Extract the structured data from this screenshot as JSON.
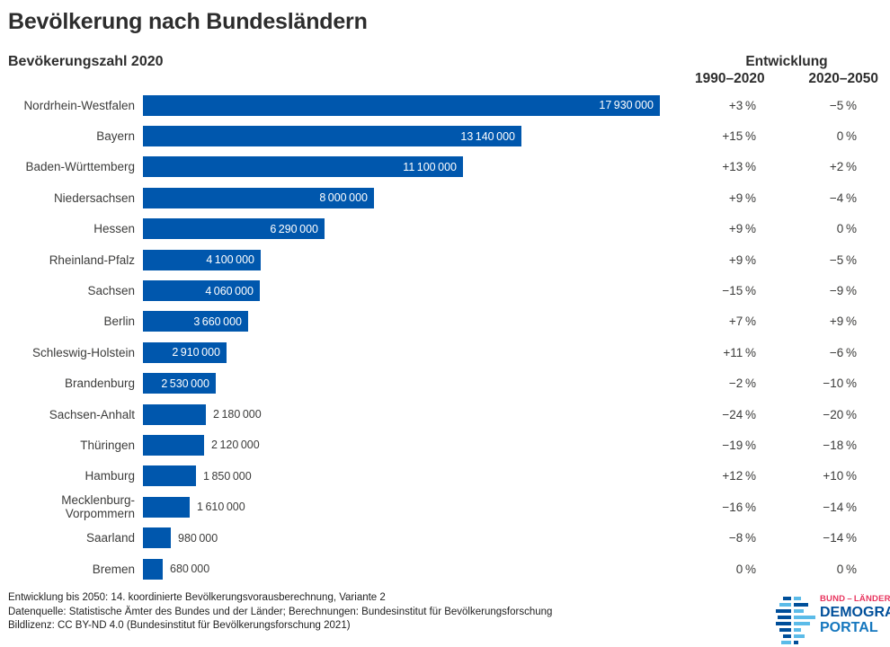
{
  "title": "Bevölkerung nach Bundesländern",
  "header": {
    "left_subtitle": "Bevökerungszahl 2020",
    "right_title": "Entwicklung",
    "col1_label": "1990–2020",
    "col2_label": "2020–2050"
  },
  "chart_data": {
    "type": "bar",
    "orientation": "horizontal",
    "title": "Bevölkerung nach Bundesländern",
    "subtitle": "Bevökerungszahl 2020",
    "categories": [
      "Nordrhein-Westfalen",
      "Bayern",
      "Baden-Württemberg",
      "Niedersachsen",
      "Hessen",
      "Rheinland-Pfalz",
      "Sachsen",
      "Berlin",
      "Schleswig-Holstein",
      "Brandenburg",
      "Sachsen-Anhalt",
      "Thüringen",
      "Hamburg",
      "Mecklenburg-Vorpommern",
      "Saarland",
      "Bremen"
    ],
    "values": [
      17930000,
      13140000,
      11100000,
      8000000,
      6290000,
      4100000,
      4060000,
      3660000,
      2910000,
      2530000,
      2180000,
      2120000,
      1850000,
      1610000,
      980000,
      680000
    ],
    "series": [
      {
        "name": "Entwicklung 1990–2020 (%)",
        "values": [
          3,
          15,
          13,
          9,
          9,
          9,
          -15,
          7,
          11,
          -2,
          -24,
          -19,
          12,
          -16,
          -8,
          0
        ]
      },
      {
        "name": "Entwicklung 2020–2050 (%)",
        "values": [
          -5,
          0,
          2,
          -4,
          0,
          -5,
          -9,
          9,
          -6,
          -10,
          -20,
          -18,
          10,
          -14,
          -14,
          0
        ]
      }
    ],
    "xlim": [
      0,
      17930000
    ],
    "grid": false,
    "value_labels": true,
    "bar_color": "#0057AD"
  },
  "rows": [
    {
      "label": "Nordrhein-Westfalen",
      "value_label": "17 930 000",
      "pct_1990_2020": "+3 %",
      "pct_2020_2050": "−5 %"
    },
    {
      "label": "Bayern",
      "value_label": "13 140 000",
      "pct_1990_2020": "+15 %",
      "pct_2020_2050": "0 %"
    },
    {
      "label": "Baden-Württemberg",
      "value_label": "11 100 000",
      "pct_1990_2020": "+13 %",
      "pct_2020_2050": "+2 %"
    },
    {
      "label": "Niedersachsen",
      "value_label": "8 000 000",
      "pct_1990_2020": "+9 %",
      "pct_2020_2050": "−4 %"
    },
    {
      "label": "Hessen",
      "value_label": "6 290 000",
      "pct_1990_2020": "+9 %",
      "pct_2020_2050": "0 %"
    },
    {
      "label": "Rheinland-Pfalz",
      "value_label": "4 100 000",
      "pct_1990_2020": "+9 %",
      "pct_2020_2050": "−5 %"
    },
    {
      "label": "Sachsen",
      "value_label": "4 060 000",
      "pct_1990_2020": "−15 %",
      "pct_2020_2050": "−9 %"
    },
    {
      "label": "Berlin",
      "value_label": "3 660 000",
      "pct_1990_2020": "+7 %",
      "pct_2020_2050": "+9 %"
    },
    {
      "label": "Schleswig-Holstein",
      "value_label": "2 910 000",
      "pct_1990_2020": "+11 %",
      "pct_2020_2050": "−6 %"
    },
    {
      "label": "Brandenburg",
      "value_label": "2 530 000",
      "pct_1990_2020": "−2 %",
      "pct_2020_2050": "−10 %"
    },
    {
      "label": "Sachsen-Anhalt",
      "value_label": "2 180 000",
      "pct_1990_2020": "−24 %",
      "pct_2020_2050": "−20 %"
    },
    {
      "label": "Thüringen",
      "value_label": "2 120 000",
      "pct_1990_2020": "−19 %",
      "pct_2020_2050": "−18 %"
    },
    {
      "label": "Hamburg",
      "value_label": "1 850 000",
      "pct_1990_2020": "+12 %",
      "pct_2020_2050": "+10 %"
    },
    {
      "label": "Mecklenburg-Vorpommern",
      "value_label": "1 610 000",
      "pct_1990_2020": "−16 %",
      "pct_2020_2050": "−14 %"
    },
    {
      "label": "Saarland",
      "value_label": "980 000",
      "pct_1990_2020": "−8 %",
      "pct_2020_2050": "−14 %"
    },
    {
      "label": "Bremen",
      "value_label": "680 000",
      "pct_1990_2020": "0 %",
      "pct_2020_2050": "0 %"
    }
  ],
  "footer": {
    "lines": [
      "Entwicklung bis 2050: 14. koordinierte Bevölkerungsvorausberechnung, Variante 2",
      "Datenquelle: Statistische Ämter des Bundes und der Länder; Berechnungen: Bundesinstitut für Bevölkerungsforschung",
      "Bildlizenz: CC BY-ND 4.0 (Bundesinstitut für Bevölkerungsforschung 2021)"
    ]
  },
  "logo": {
    "icon": "population-pyramid-bars-icon",
    "line1": "BUND – LÄNDER",
    "line2": "DEMOGRAFIE",
    "line3": "PORTAL"
  },
  "colors": {
    "bar": "#0057AD",
    "text": "#3C3C3B",
    "logo_dark_blue": "#004F9A",
    "logo_mid_blue": "#1577BE",
    "logo_light_blue": "#5BBBE8",
    "logo_red": "#E8345E"
  }
}
